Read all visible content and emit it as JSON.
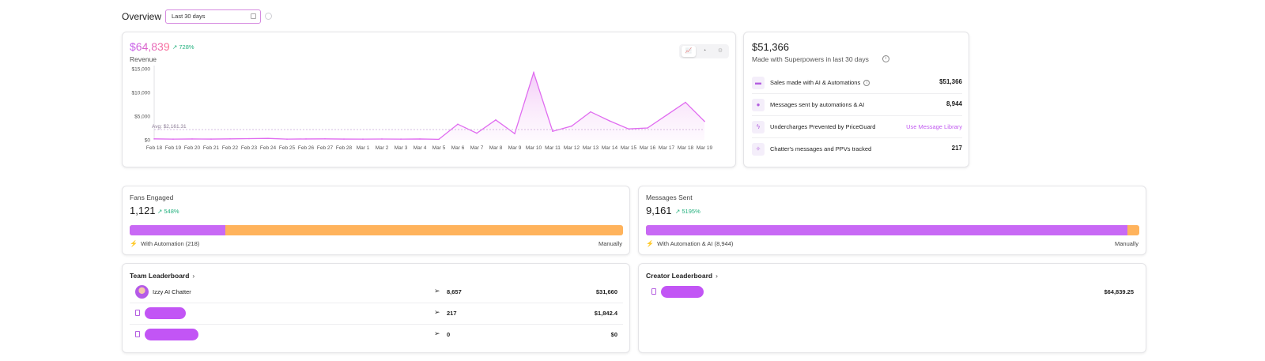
{
  "header": {
    "title": "Overview",
    "date_range": "Last 30 days"
  },
  "revenue": {
    "value": "$64,839",
    "change": "728%",
    "label": "Revenue",
    "avg_label": "Avg: $2,161.31"
  },
  "chart_data": {
    "type": "area",
    "title": "Revenue",
    "x": [
      "Feb 18",
      "Feb 19",
      "Feb 20",
      "Feb 21",
      "Feb 22",
      "Feb 23",
      "Feb 24",
      "Feb 25",
      "Feb 26",
      "Feb 27",
      "Feb 28",
      "Mar 1",
      "Mar 2",
      "Mar 3",
      "Mar 4",
      "Mar 5",
      "Mar 6",
      "Mar 7",
      "Mar 8",
      "Mar 9",
      "Mar 10",
      "Mar 11",
      "Mar 12",
      "Mar 13",
      "Mar 14",
      "Mar 15",
      "Mar 16",
      "Mar 17",
      "Mar 18",
      "Mar 19"
    ],
    "series": [
      {
        "name": "Revenue",
        "values": [
          200,
          150,
          180,
          160,
          200,
          250,
          300,
          150,
          180,
          200,
          160,
          150,
          170,
          150,
          180,
          100,
          3300,
          1400,
          4200,
          1300,
          14200,
          1800,
          2900,
          5900,
          4000,
          2300,
          2500,
          5200,
          7900,
          3900
        ]
      }
    ],
    "ylim": [
      0,
      15000
    ],
    "yticks": [
      0,
      5000,
      10000,
      15000
    ],
    "ytick_labels": [
      "$0",
      "$5,000",
      "$10,000",
      "$15,000"
    ],
    "average": 2161.31,
    "xlabel": "",
    "ylabel": ""
  },
  "superpowers": {
    "value": "$51,366",
    "subtitle": "Made with Superpowers in last 30 days",
    "rows": [
      {
        "label": "Sales made with AI & Automations",
        "value": "$51,366"
      },
      {
        "label": "Messages sent by automations & AI",
        "value": "8,944"
      },
      {
        "label": "Undercharges Prevented by PriceGuard",
        "link": "Use Message Library"
      },
      {
        "label": "Chatter's messages and PPVs tracked",
        "value": "217"
      }
    ]
  },
  "fans": {
    "label": "Fans Engaged",
    "value": "1,121",
    "change": "548%",
    "automation_label": "With Automation (218)",
    "manual_label": "Manually",
    "automation_fraction": 0.194
  },
  "messages": {
    "label": "Messages Sent",
    "value": "9,161",
    "change": "5195%",
    "automation_label": "With Automation & AI (8,944)",
    "manual_label": "Manually",
    "automation_fraction": 0.976
  },
  "team_leaderboard": {
    "title": "Team Leaderboard",
    "rows": [
      {
        "name": "Izzy AI Chatter",
        "count": "8,657",
        "amount": "$31,660"
      },
      {
        "name": "",
        "count": "217",
        "amount": "$1,842.4"
      },
      {
        "name": "",
        "count": "0",
        "amount": "$0"
      }
    ]
  },
  "creator_leaderboard": {
    "title": "Creator Leaderboard",
    "rows": [
      {
        "name": "",
        "amount": "$64,839.25"
      }
    ]
  },
  "colors": {
    "accent": "#c869f5",
    "manual": "#ffb35c",
    "positive": "#22b07d"
  }
}
